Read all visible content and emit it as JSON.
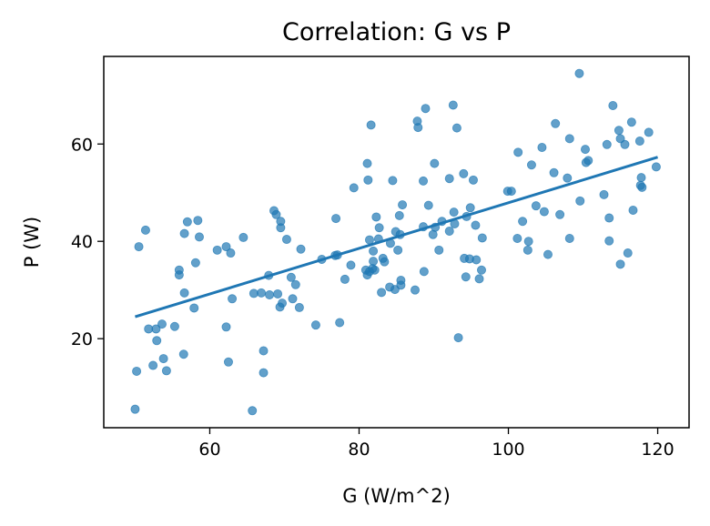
{
  "chart_data": {
    "type": "scatter",
    "title": "Correlation: G vs P",
    "xlabel": "G (W/m^2)",
    "ylabel": "P (W)",
    "xlim": [
      45.8,
      124.2
    ],
    "ylim": [
      1.7,
      78.0
    ],
    "xticks": [
      60,
      80,
      100,
      120
    ],
    "yticks": [
      20,
      40,
      60
    ],
    "point_color": "#1f77b4",
    "line_color": "#1f77b4",
    "grid": false,
    "points": [
      [
        50,
        5.5
      ],
      [
        50.2,
        13.3
      ],
      [
        50.5,
        38.9
      ],
      [
        51.4,
        42.3
      ],
      [
        51.8,
        22
      ],
      [
        52.4,
        14.5
      ],
      [
        52.8,
        22
      ],
      [
        52.9,
        19.6
      ],
      [
        53.6,
        23
      ],
      [
        53.8,
        15.9
      ],
      [
        54.2,
        13.4
      ],
      [
        55.3,
        22.5
      ],
      [
        55.9,
        34.1
      ],
      [
        55.9,
        33.1
      ],
      [
        56.5,
        16.8
      ],
      [
        56.6,
        41.6
      ],
      [
        56.6,
        29.4
      ],
      [
        57,
        44
      ],
      [
        57.9,
        26.3
      ],
      [
        58.1,
        35.6
      ],
      [
        58.4,
        44.3
      ],
      [
        58.6,
        40.9
      ],
      [
        61,
        38.2
      ],
      [
        62.2,
        38.9
      ],
      [
        62.2,
        22.4
      ],
      [
        62.5,
        15.2
      ],
      [
        62.8,
        37.6
      ],
      [
        63,
        28.2
      ],
      [
        64.5,
        40.8
      ],
      [
        65.7,
        5.2
      ],
      [
        65.9,
        29.3
      ],
      [
        66.9,
        29.4
      ],
      [
        67.2,
        17.5
      ],
      [
        67.2,
        13
      ],
      [
        67.9,
        33
      ],
      [
        68,
        29
      ],
      [
        68.6,
        46.3
      ],
      [
        68.9,
        45.5
      ],
      [
        69.1,
        29.2
      ],
      [
        69.4,
        26.5
      ],
      [
        69.5,
        44.1
      ],
      [
        69.5,
        42.8
      ],
      [
        69.7,
        27.3
      ],
      [
        70.3,
        40.4
      ],
      [
        70.9,
        32.6
      ],
      [
        71.1,
        28.2
      ],
      [
        71.5,
        31.1
      ],
      [
        72,
        26.4
      ],
      [
        72.2,
        38.4
      ],
      [
        74.2,
        22.8
      ],
      [
        75,
        36.3
      ],
      [
        76.8,
        37.1
      ],
      [
        76.9,
        44.7
      ],
      [
        77.1,
        37.2
      ],
      [
        77.4,
        23.3
      ],
      [
        78.1,
        32.2
      ],
      [
        78.9,
        35.1
      ],
      [
        79.3,
        51
      ],
      [
        80.9,
        34.1
      ],
      [
        81.1,
        33.1
      ],
      [
        81.1,
        56
      ],
      [
        81.2,
        52.6
      ],
      [
        81.4,
        40.3
      ],
      [
        81.4,
        33.8
      ],
      [
        81.6,
        63.9
      ],
      [
        81.8,
        34.4
      ],
      [
        81.9,
        35.9
      ],
      [
        81.9,
        38
      ],
      [
        82.1,
        34.1
      ],
      [
        82.3,
        45
      ],
      [
        82.6,
        40.5
      ],
      [
        82.7,
        42.8
      ],
      [
        83,
        29.5
      ],
      [
        83.2,
        36.5
      ],
      [
        83.4,
        35.8
      ],
      [
        84.1,
        30.6
      ],
      [
        84.2,
        39.6
      ],
      [
        84.5,
        52.5
      ],
      [
        84.8,
        30.1
      ],
      [
        84.9,
        42
      ],
      [
        85.2,
        38.2
      ],
      [
        85.4,
        45.3
      ],
      [
        85.5,
        41.4
      ],
      [
        85.6,
        32
      ],
      [
        85.6,
        31
      ],
      [
        85.8,
        47.5
      ],
      [
        87.5,
        30
      ],
      [
        87.8,
        64.7
      ],
      [
        87.9,
        63.4
      ],
      [
        88.6,
        52.4
      ],
      [
        88.6,
        43
      ],
      [
        88.7,
        33.8
      ],
      [
        88.9,
        67.3
      ],
      [
        89.3,
        47.4
      ],
      [
        89.9,
        41.4
      ],
      [
        90.1,
        56
      ],
      [
        90.2,
        42.9
      ],
      [
        90.7,
        38.2
      ],
      [
        91.1,
        44.1
      ],
      [
        92.1,
        52.9
      ],
      [
        92.1,
        42.1
      ],
      [
        92.6,
        68
      ],
      [
        92.7,
        46
      ],
      [
        92.8,
        43.6
      ],
      [
        93.1,
        63.3
      ],
      [
        93.3,
        20.2
      ],
      [
        94,
        53.9
      ],
      [
        94.1,
        36.5
      ],
      [
        94.3,
        32.7
      ],
      [
        94.4,
        45.1
      ],
      [
        94.8,
        36.4
      ],
      [
        94.9,
        46.9
      ],
      [
        95.3,
        52.6
      ],
      [
        95.6,
        43.3
      ],
      [
        95.7,
        36.2
      ],
      [
        96.1,
        32.3
      ],
      [
        96.4,
        34.1
      ],
      [
        96.5,
        40.7
      ],
      [
        99.9,
        50.3
      ],
      [
        100.4,
        50.3
      ],
      [
        101.2,
        40.6
      ],
      [
        101.3,
        58.3
      ],
      [
        101.9,
        44.1
      ],
      [
        102.6,
        38.2
      ],
      [
        102.7,
        40
      ],
      [
        103.1,
        55.7
      ],
      [
        103.7,
        47.3
      ],
      [
        104.5,
        59.3
      ],
      [
        104.8,
        46.1
      ],
      [
        105.3,
        37.3
      ],
      [
        106.1,
        54.1
      ],
      [
        106.3,
        64.2
      ],
      [
        106.9,
        45.5
      ],
      [
        107.9,
        53
      ],
      [
        108.2,
        40.6
      ],
      [
        108.2,
        61.1
      ],
      [
        109.5,
        74.5
      ],
      [
        109.6,
        48.3
      ],
      [
        110.3,
        58.9
      ],
      [
        110.4,
        56.2
      ],
      [
        110.7,
        56.6
      ],
      [
        112.8,
        49.6
      ],
      [
        113.2,
        59.9
      ],
      [
        113.5,
        44.8
      ],
      [
        113.5,
        40.1
      ],
      [
        114,
        67.9
      ],
      [
        114.8,
        62.8
      ],
      [
        115,
        61.1
      ],
      [
        115,
        35.3
      ],
      [
        115.6,
        59.9
      ],
      [
        116,
        37.6
      ],
      [
        116.5,
        64.5
      ],
      [
        116.7,
        46.4
      ],
      [
        117.6,
        60.6
      ],
      [
        117.7,
        51.5
      ],
      [
        117.8,
        53.1
      ],
      [
        117.9,
        51.1
      ],
      [
        118.8,
        62.4
      ],
      [
        119.8,
        55.3
      ]
    ],
    "trendline": {
      "x": [
        50,
        120
      ],
      "y": [
        24.5,
        57.3
      ]
    }
  }
}
